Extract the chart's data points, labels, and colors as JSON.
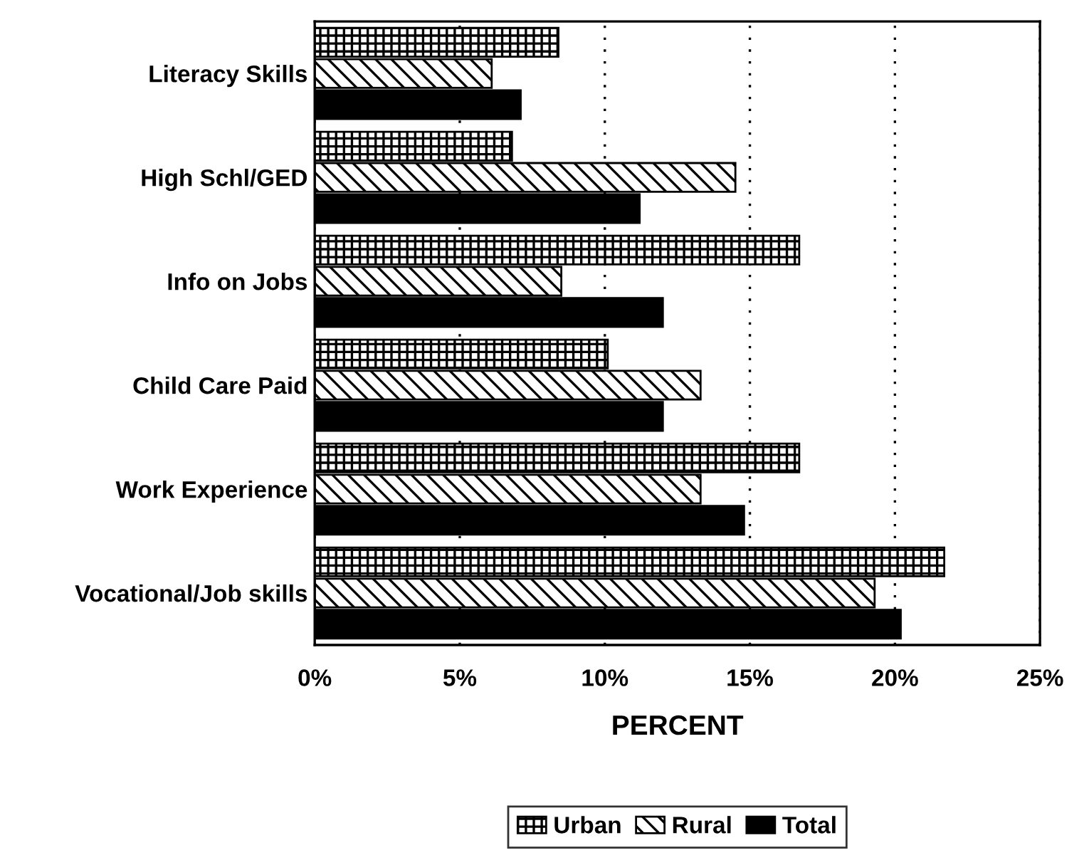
{
  "chart_data": {
    "type": "bar",
    "orientation": "horizontal",
    "categories": [
      "Literacy Skills",
      "High Schl/GED",
      "Info on Jobs",
      "Child Care Paid",
      "Work Experience",
      "Vocational/Job skills"
    ],
    "series": [
      {
        "name": "Urban",
        "color": "#000000",
        "values": [
          8.4,
          6.8,
          16.7,
          10.1,
          16.7,
          21.7
        ]
      },
      {
        "name": "Rural",
        "color": "#000000",
        "values": [
          6.1,
          14.5,
          8.5,
          13.3,
          13.3,
          19.3
        ]
      },
      {
        "name": "Total",
        "color": "#000000",
        "values": [
          7.1,
          11.2,
          12.0,
          12.0,
          14.8,
          20.2
        ]
      }
    ],
    "xlabel": "PERCENT",
    "xlim": [
      0,
      25
    ],
    "xticks": [
      {
        "value": 0,
        "label": "0%"
      },
      {
        "value": 5,
        "label": "5%"
      },
      {
        "value": 10,
        "label": "10%"
      },
      {
        "value": 15,
        "label": "15%"
      },
      {
        "value": 20,
        "label": "20%"
      },
      {
        "value": 25,
        "label": "25%"
      }
    ],
    "grid": "x",
    "legend": "bottom"
  }
}
